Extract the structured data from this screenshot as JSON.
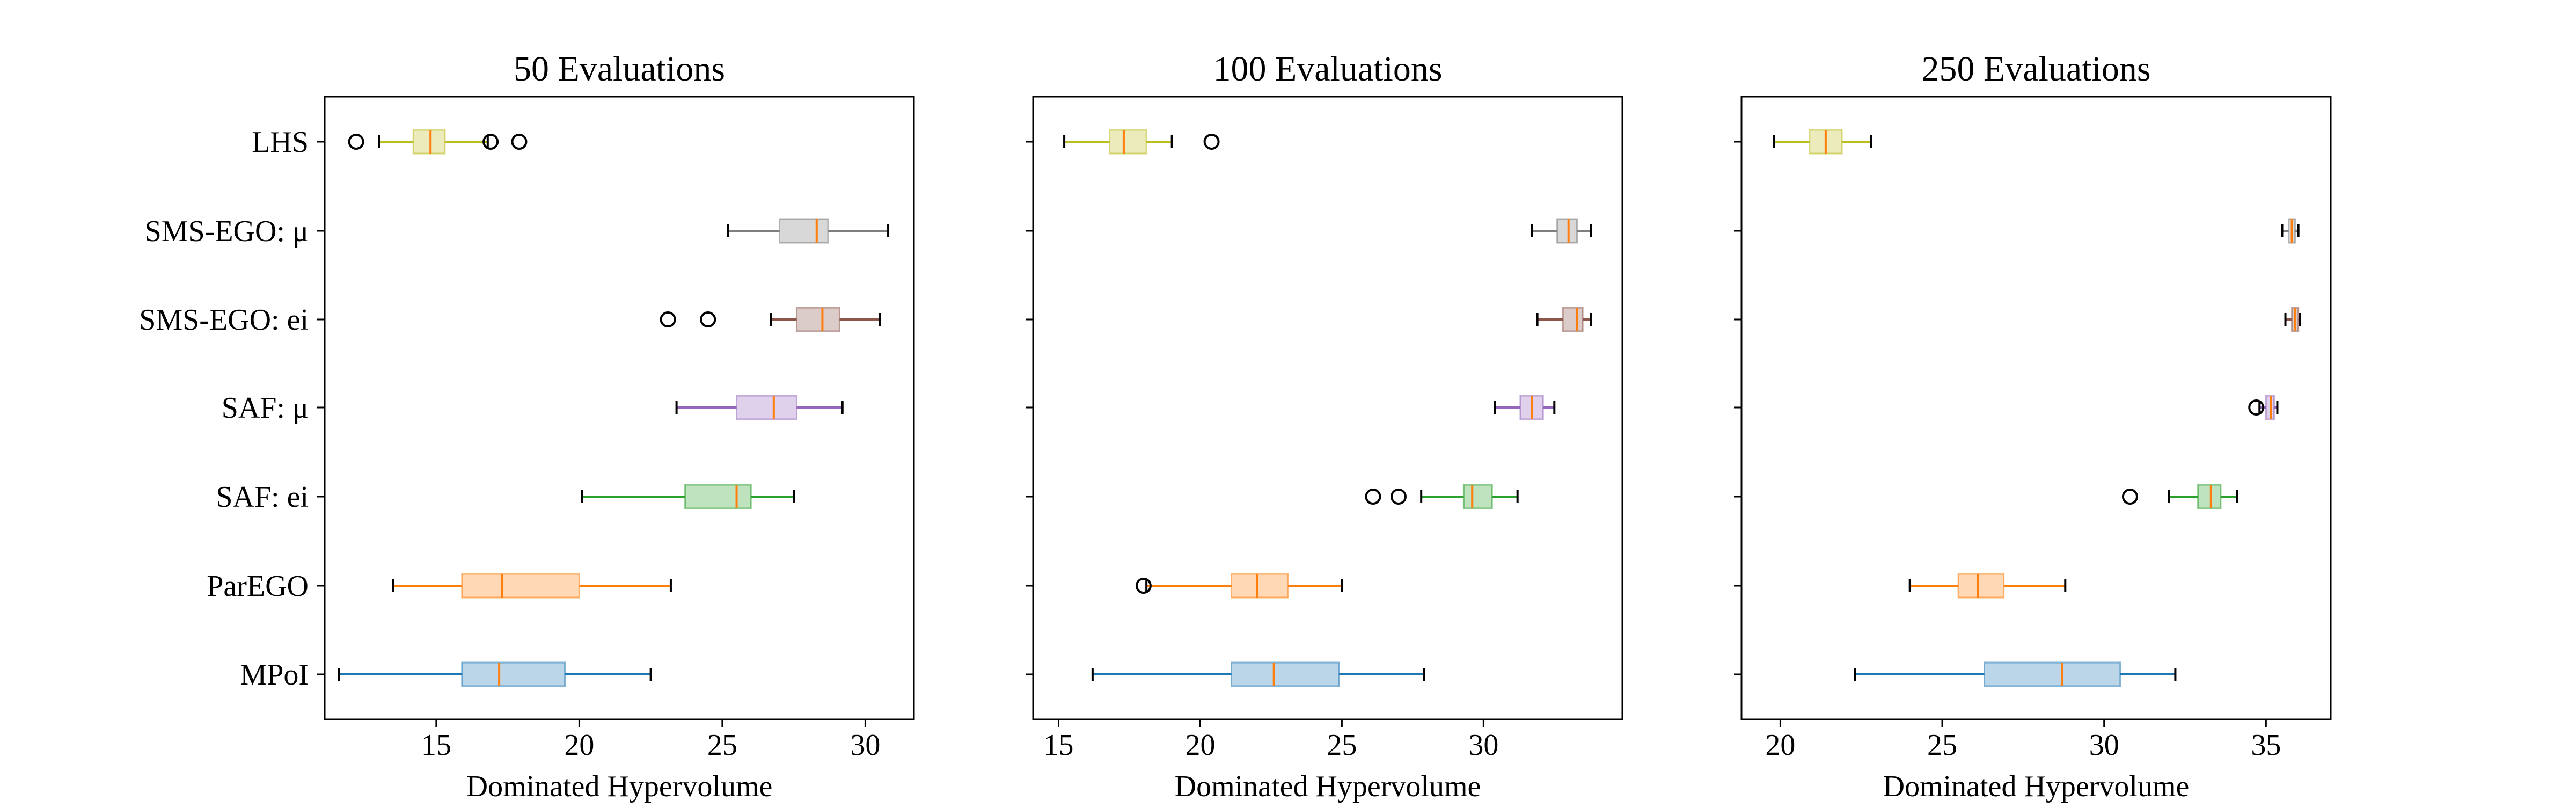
{
  "chart_data": [
    {
      "type": "boxplot",
      "orientation": "horizontal",
      "title": "50 Evaluations",
      "xlabel": "Dominated Hypervolume",
      "xlim": [
        11.1,
        31.7
      ],
      "xticks": [
        15,
        20,
        25,
        30
      ],
      "categories": [
        "LHS",
        "SMS-EGO: μ",
        "SMS-EGO: ei",
        "SAF: μ",
        "SAF: ei",
        "ParEGO",
        "MPoI"
      ],
      "boxes": [
        {
          "category": "LHS",
          "whisker_low": 13.0,
          "q1": 14.2,
          "median": 14.8,
          "q3": 15.3,
          "whisker_high": 16.8,
          "outliers": [
            12.2,
            16.9,
            17.9
          ]
        },
        {
          "category": "SMS-EGO: μ",
          "whisker_low": 25.2,
          "q1": 27.0,
          "median": 28.3,
          "q3": 28.7,
          "whisker_high": 30.8,
          "outliers": []
        },
        {
          "category": "SMS-EGO: ei",
          "whisker_low": 26.7,
          "q1": 27.6,
          "median": 28.5,
          "q3": 29.1,
          "whisker_high": 30.5,
          "outliers": [
            23.1,
            24.5
          ]
        },
        {
          "category": "SAF: μ",
          "whisker_low": 23.4,
          "q1": 25.5,
          "median": 26.8,
          "q3": 27.6,
          "whisker_high": 29.2,
          "outliers": []
        },
        {
          "category": "SAF: ei",
          "whisker_low": 20.1,
          "q1": 23.7,
          "median": 25.5,
          "q3": 26.0,
          "whisker_high": 27.5,
          "outliers": []
        },
        {
          "category": "ParEGO",
          "whisker_low": 13.5,
          "q1": 15.9,
          "median": 17.3,
          "q3": 20.0,
          "whisker_high": 23.2,
          "outliers": []
        },
        {
          "category": "MPoI",
          "whisker_low": 11.6,
          "q1": 15.9,
          "median": 17.2,
          "q3": 19.5,
          "whisker_high": 22.5,
          "outliers": []
        }
      ]
    },
    {
      "type": "boxplot",
      "orientation": "horizontal",
      "title": "100 Evaluations",
      "xlabel": "Dominated Hypervolume",
      "xlim": [
        14.1,
        34.9
      ],
      "xticks": [
        15,
        20,
        25,
        30
      ],
      "categories": [
        "LHS",
        "SMS-EGO: μ",
        "SMS-EGO: ei",
        "SAF: μ",
        "SAF: ei",
        "ParEGO",
        "MPoI"
      ],
      "boxes": [
        {
          "category": "LHS",
          "whisker_low": 15.2,
          "q1": 16.8,
          "median": 17.3,
          "q3": 18.1,
          "whisker_high": 19.0,
          "outliers": [
            20.4
          ]
        },
        {
          "category": "SMS-EGO: μ",
          "whisker_low": 31.7,
          "q1": 32.6,
          "median": 33.0,
          "q3": 33.3,
          "whisker_high": 33.8,
          "outliers": []
        },
        {
          "category": "SMS-EGO: ei",
          "whisker_low": 31.9,
          "q1": 32.8,
          "median": 33.3,
          "q3": 33.5,
          "whisker_high": 33.8,
          "outliers": []
        },
        {
          "category": "SAF: μ",
          "whisker_low": 30.4,
          "q1": 31.3,
          "median": 31.7,
          "q3": 32.1,
          "whisker_high": 32.5,
          "outliers": []
        },
        {
          "category": "SAF: ei",
          "whisker_low": 27.8,
          "q1": 29.3,
          "median": 29.6,
          "q3": 30.3,
          "whisker_high": 31.2,
          "outliers": [
            26.1,
            27.0
          ]
        },
        {
          "category": "ParEGO",
          "whisker_low": 18.1,
          "q1": 21.1,
          "median": 22.0,
          "q3": 23.1,
          "whisker_high": 25.0,
          "outliers": [
            18.0
          ]
        },
        {
          "category": "MPoI",
          "whisker_low": 16.2,
          "q1": 21.1,
          "median": 22.6,
          "q3": 24.9,
          "whisker_high": 27.9,
          "outliers": []
        }
      ]
    },
    {
      "type": "boxplot",
      "orientation": "horizontal",
      "title": "250 Evaluations",
      "xlabel": "Dominated Hypervolume",
      "xlim": [
        18.8,
        37.0
      ],
      "xticks": [
        20,
        25,
        30,
        35
      ],
      "categories": [
        "LHS",
        "SMS-EGO: μ",
        "SMS-EGO: ei",
        "SAF: μ",
        "SAF: ei",
        "ParEGO",
        "MPoI"
      ],
      "boxes": [
        {
          "category": "LHS",
          "whisker_low": 19.8,
          "q1": 20.9,
          "median": 21.4,
          "q3": 21.9,
          "whisker_high": 22.8,
          "outliers": []
        },
        {
          "category": "SMS-EGO: μ",
          "whisker_low": 35.5,
          "q1": 35.7,
          "median": 35.8,
          "q3": 35.9,
          "whisker_high": 36.0,
          "outliers": []
        },
        {
          "category": "SMS-EGO: ei",
          "whisker_low": 35.6,
          "q1": 35.8,
          "median": 35.9,
          "q3": 36.0,
          "whisker_high": 36.05,
          "outliers": []
        },
        {
          "category": "SAF: μ",
          "whisker_low": 34.8,
          "q1": 35.0,
          "median": 35.15,
          "q3": 35.25,
          "whisker_high": 35.35,
          "outliers": [
            34.7
          ]
        },
        {
          "category": "SAF: ei",
          "whisker_low": 32.0,
          "q1": 32.9,
          "median": 33.3,
          "q3": 33.6,
          "whisker_high": 34.1,
          "outliers": [
            30.8
          ]
        },
        {
          "category": "ParEGO",
          "whisker_low": 24.0,
          "q1": 25.5,
          "median": 26.1,
          "q3": 26.9,
          "whisker_high": 28.8,
          "outliers": []
        },
        {
          "category": "MPoI",
          "whisker_low": 22.3,
          "q1": 26.3,
          "median": 28.7,
          "q3": 30.5,
          "whisker_high": 32.2,
          "outliers": []
        }
      ]
    }
  ],
  "styles": {
    "median_color": "#ff7f0e",
    "series_colors": {
      "LHS": "#bcbd22",
      "SMS-EGO: μ": "#7f7f7f",
      "SMS-EGO: ei": "#8c564b",
      "SAF: μ": "#9467bd",
      "SAF: ei": "#2ca02c",
      "ParEGO": "#ff7f0e",
      "MPoI": "#1f77b4"
    }
  }
}
